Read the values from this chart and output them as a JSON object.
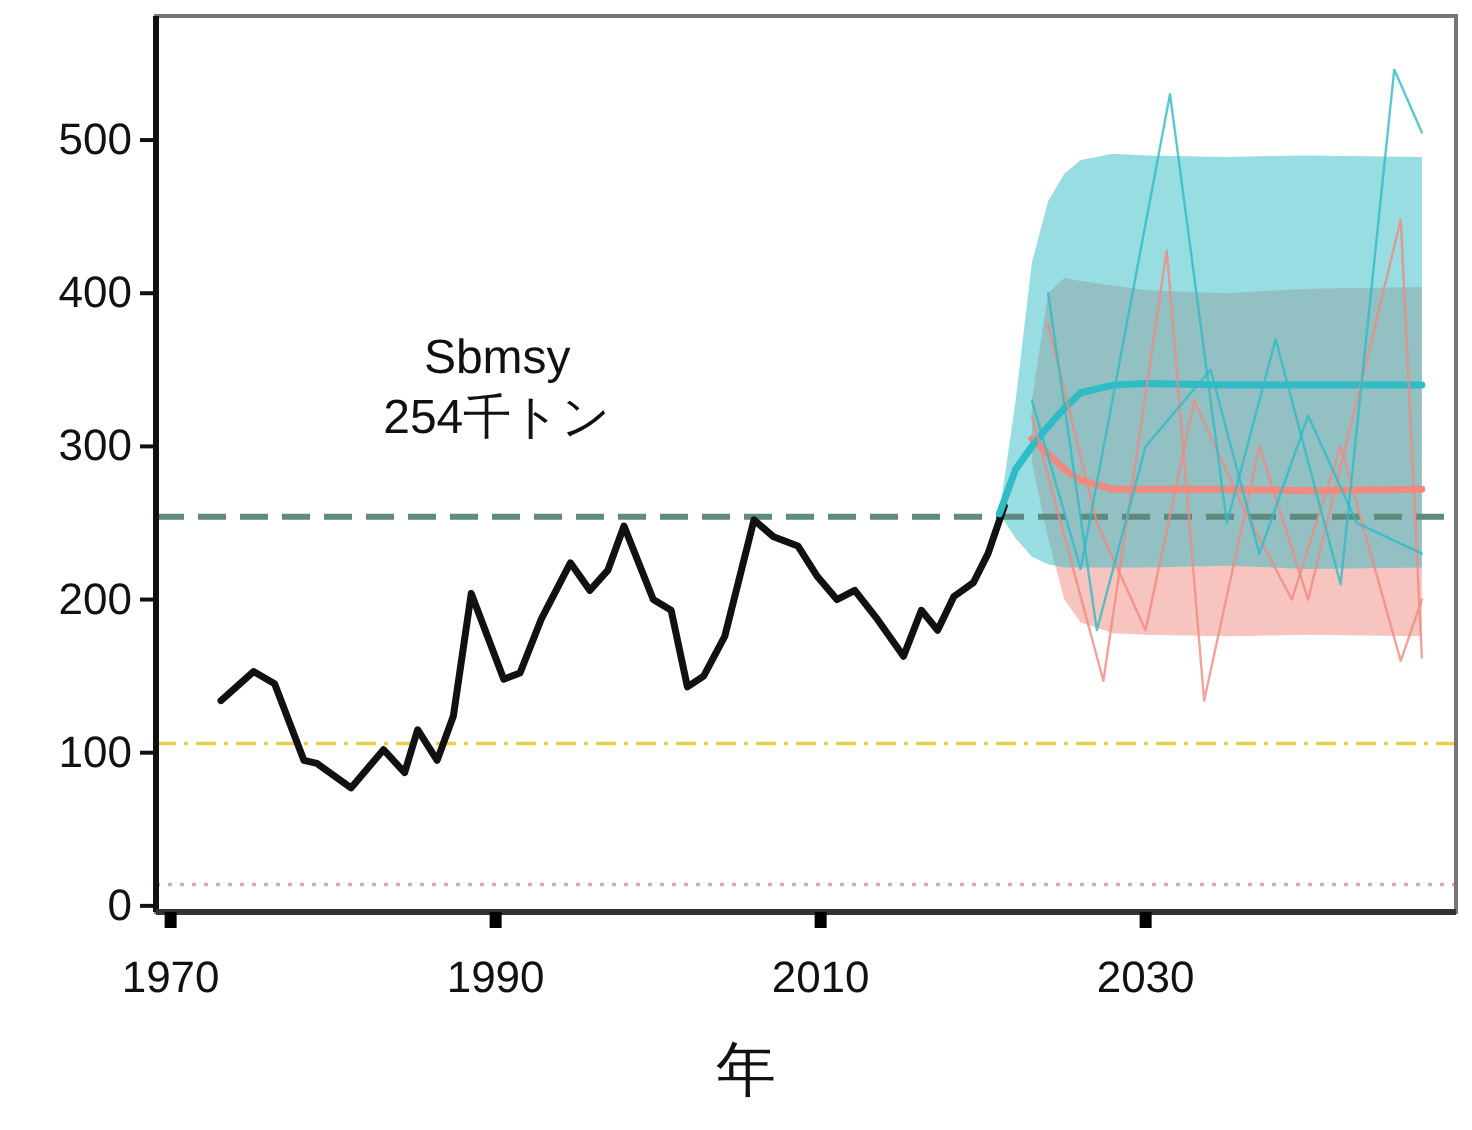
{
  "chart_data": {
    "type": "line",
    "xlabel": "年",
    "xlim": [
      1969.1,
      2049.1
    ],
    "ylim": [
      -4,
      581
    ],
    "xticks": [
      1970,
      1990,
      2010,
      2030
    ],
    "yticks": [
      0,
      100,
      200,
      300,
      400,
      500
    ],
    "grid": false,
    "marker": "none",
    "series": [
      {
        "color": "#111111",
        "x": [
          1973.1,
          1975.1,
          1976.4,
          1978.2,
          1979,
          1981.1,
          1983.1,
          1984.4,
          1985.2,
          1986.4,
          1987.4,
          1988.5,
          1990.5,
          1991.5,
          1992.8,
          1994.6,
          1995.8,
          1996.9,
          1997.9,
          1999.7,
          2000.8,
          2001.8,
          2002.8,
          2004.1,
          2005.9,
          2007.1,
          2008.6,
          2009.8,
          2011.0,
          2012.1,
          2013.5,
          2015.1,
          2016.2,
          2017.2,
          2018.2,
          2019.4,
          2020.3,
          2021.3
        ],
        "values": [
          134,
          153,
          145,
          95,
          93,
          77,
          102,
          87,
          115,
          95,
          124,
          204,
          148,
          152,
          187,
          224,
          206,
          219,
          248,
          200,
          193,
          143,
          150,
          176,
          252,
          241,
          235,
          215,
          200,
          206,
          187,
          163,
          193,
          180,
          202,
          211,
          230,
          261
        ]
      },
      {
        "color": "#f08a80",
        "x": [
          2023,
          2024,
          2025,
          2026,
          2028,
          2030,
          2035,
          2040,
          2047
        ],
        "values": [
          305,
          295,
          285,
          278,
          272,
          272,
          272,
          271,
          272
        ],
        "lower": [
          290,
          240,
          200,
          185,
          178,
          177,
          176,
          177,
          176
        ],
        "upper": [
          330,
          400,
          410,
          408,
          405,
          402,
          400,
          403,
          404
        ]
      },
      {
        "color": "#2fbcc6",
        "x": [
          2021,
          2022,
          2023,
          2024,
          2025,
          2026,
          2028,
          2030,
          2035,
          2040,
          2047
        ],
        "values": [
          256,
          285,
          300,
          313,
          325,
          335,
          340,
          341,
          340,
          340,
          340
        ],
        "lower": [
          256,
          240,
          228,
          223,
          221,
          221,
          221,
          221,
          222,
          220,
          221
        ],
        "upper": [
          256,
          330,
          420,
          460,
          478,
          487,
          491,
          490,
          489,
          490,
          489
        ]
      },
      {
        "color": "#f08a80",
        "x": [
          2023,
          2027.4,
          2031.3,
          2033.6,
          2037,
          2040,
          2043,
          2045.7,
          2047
        ],
        "values": [
          320,
          147,
          428,
          134,
          300,
          200,
          330,
          448,
          162
        ]
      },
      {
        "color": "#f08a80",
        "x": [
          2024,
          2027,
          2030,
          2033,
          2036,
          2039,
          2042,
          2045.7,
          2047
        ],
        "values": [
          380,
          250,
          180,
          330,
          260,
          200,
          300,
          160,
          200
        ]
      },
      {
        "color": "#2fbcc6",
        "x": [
          2023,
          2026,
          2031.5,
          2035,
          2038,
          2042,
          2045.3,
          2047
        ],
        "values": [
          330,
          220,
          530,
          250,
          370,
          210,
          546,
          505
        ]
      },
      {
        "color": "#2fbcc6",
        "x": [
          2024,
          2027,
          2030,
          2034,
          2037,
          2040,
          2043,
          2047
        ],
        "values": [
          400,
          180,
          300,
          350,
          230,
          320,
          250,
          230
        ]
      }
    ],
    "ref_lines": [
      {
        "axis": "y",
        "value": 254,
        "label": "Sbmsy\n254千トン",
        "color": "#5f8a7e",
        "line_style": "dashed"
      },
      {
        "axis": "y",
        "value": 106,
        "color": "#e8d04a",
        "line_style": "dashdot"
      },
      {
        "axis": "y",
        "value": 14,
        "color": "#e0a8a8",
        "line_style": "dotted"
      }
    ]
  }
}
